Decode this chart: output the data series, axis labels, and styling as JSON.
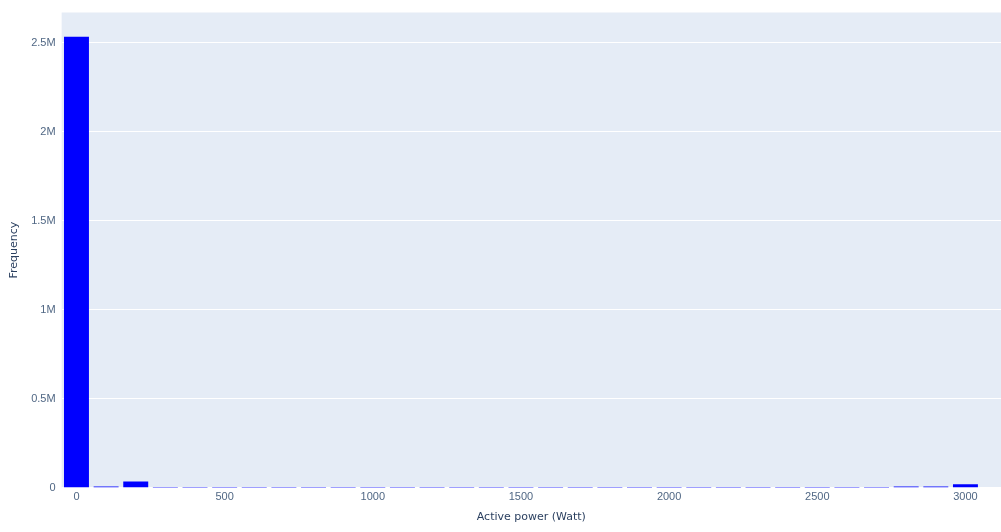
{
  "chart_data": {
    "type": "histogram",
    "xlabel": "Active power (Watt)",
    "ylabel": "Frequency",
    "bins": [
      -50,
      50,
      150,
      250,
      350,
      450,
      550,
      650,
      750,
      850,
      950,
      1050,
      1150,
      1250,
      1350,
      1450,
      1550,
      1650,
      1750,
      1850,
      1950,
      2050,
      2150,
      2250,
      2350,
      2450,
      2550,
      2650,
      2750,
      2850,
      2950,
      3050
    ],
    "values": [
      2533000,
      5000,
      33000,
      0,
      0,
      0,
      0,
      0,
      0,
      0,
      0,
      0,
      0,
      0,
      0,
      0,
      0,
      0,
      0,
      0,
      0,
      0,
      0,
      0,
      0,
      0,
      0,
      0,
      5000,
      5000,
      17000
    ],
    "color": "#0000ff",
    "xlim": [
      -50,
      3120
    ],
    "xticks": [
      0,
      500,
      1000,
      1500,
      2000,
      2500,
      3000
    ],
    "ylim": [
      0,
      2670000
    ],
    "yticks": [
      0,
      {
        "value": 500000,
        "label": "0.5M"
      },
      {
        "value": 1000000,
        "label": "1M"
      },
      {
        "value": 1500000,
        "label": "1.5M"
      },
      {
        "value": 2000000,
        "label": "2M"
      },
      {
        "value": 2500000,
        "label": "2.5M"
      }
    ],
    "grid": "y",
    "legend": false
  }
}
